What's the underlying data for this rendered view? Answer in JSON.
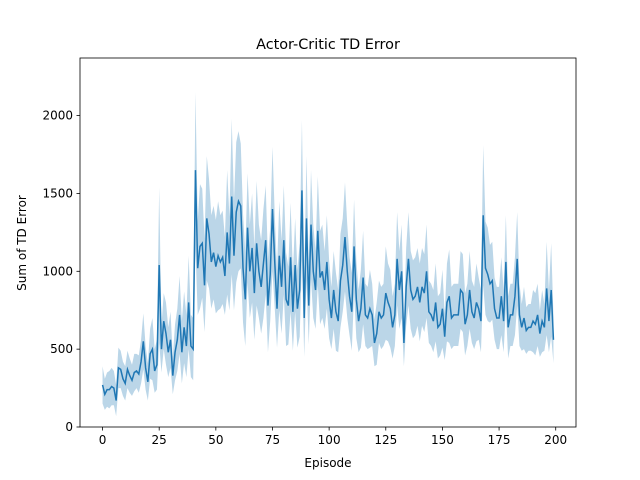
{
  "chart_data": {
    "type": "line",
    "title": "Actor-Critic TD Error",
    "x_label": "Episode",
    "y_label": "Sum of TD Error",
    "x": [
      0,
      1,
      2,
      3,
      4,
      5,
      6,
      7,
      8,
      9,
      10,
      11,
      12,
      13,
      14,
      15,
      16,
      17,
      18,
      19,
      20,
      21,
      22,
      23,
      24,
      25,
      26,
      27,
      28,
      29,
      30,
      31,
      32,
      33,
      34,
      35,
      36,
      37,
      38,
      39,
      40,
      41,
      42,
      43,
      44,
      45,
      46,
      47,
      48,
      49,
      50,
      51,
      52,
      53,
      54,
      55,
      56,
      57,
      58,
      59,
      60,
      61,
      62,
      63,
      64,
      65,
      66,
      67,
      68,
      69,
      70,
      71,
      72,
      73,
      74,
      75,
      76,
      77,
      78,
      79,
      80,
      81,
      82,
      83,
      84,
      85,
      86,
      87,
      88,
      89,
      90,
      91,
      92,
      93,
      94,
      95,
      96,
      97,
      98,
      99,
      100,
      101,
      102,
      103,
      104,
      105,
      106,
      107,
      108,
      109,
      110,
      111,
      112,
      113,
      114,
      115,
      116,
      117,
      118,
      119,
      120,
      121,
      122,
      123,
      124,
      125,
      126,
      127,
      128,
      129,
      130,
      131,
      132,
      133,
      134,
      135,
      136,
      137,
      138,
      139,
      140,
      141,
      142,
      143,
      144,
      145,
      146,
      147,
      148,
      149,
      150,
      151,
      152,
      153,
      154,
      155,
      156,
      157,
      158,
      159,
      160,
      161,
      162,
      163,
      164,
      165,
      166,
      167,
      168,
      169,
      170,
      171,
      172,
      173,
      174,
      175,
      176,
      177,
      178,
      179,
      180,
      181,
      182,
      183,
      184,
      185,
      186,
      187,
      188,
      189,
      190,
      191,
      192,
      193,
      194,
      195,
      196,
      197,
      198,
      199
    ],
    "series": [
      {
        "color": "#1f77b4",
        "values": [
          270,
          210,
          240,
          240,
          260,
          250,
          170,
          380,
          370,
          310,
          280,
          370,
          330,
          300,
          350,
          360,
          340,
          420,
          550,
          380,
          290,
          470,
          500,
          360,
          400,
          1040,
          500,
          680,
          600,
          480,
          560,
          330,
          480,
          560,
          720,
          480,
          640,
          520,
          800,
          520,
          500,
          1650,
          1020,
          1160,
          1180,
          910,
          1340,
          1240,
          1060,
          1120,
          1030,
          1100,
          1060,
          1090,
          970,
          1250,
          1050,
          1480,
          1100,
          1380,
          1450,
          1420,
          1020,
          820,
          1280,
          1000,
          1150,
          860,
          1180,
          1000,
          900,
          1050,
          1200,
          780,
          980,
          1400,
          1060,
          760,
          1100,
          900,
          1200,
          820,
          780,
          1090,
          740,
          1040,
          760,
          880,
          1520,
          700,
          1340,
          780,
          1300,
          1000,
          880,
          1260,
          960,
          1000,
          880,
          1060,
          820,
          700,
          880,
          740,
          680,
          940,
          1040,
          1220,
          1000,
          840,
          740,
          1160,
          820,
          680,
          760,
          960,
          720,
          700,
          760,
          720,
          540,
          600,
          740,
          700,
          720,
          860,
          800,
          760,
          640,
          720,
          1080,
          880,
          1000,
          540,
          900,
          1080,
          880,
          820,
          840,
          900,
          800,
          900,
          860,
          1000,
          740,
          720,
          680,
          800,
          640,
          660,
          760,
          580,
          800,
          840,
          700,
          720,
          720,
          720,
          880,
          860,
          660,
          720,
          880,
          740,
          700,
          800,
          760,
          680,
          1360,
          1020,
          980,
          920,
          940,
          760,
          700,
          700,
          840,
          680,
          1060,
          640,
          720,
          720,
          840,
          1080,
          720,
          640,
          700,
          620,
          640,
          640,
          680,
          660,
          720,
          600,
          680,
          640,
          890,
          680,
          880,
          560
        ],
        "errors": [
          120,
          100,
          110,
          120,
          120,
          110,
          100,
          130,
          120,
          110,
          110,
          120,
          110,
          100,
          120,
          110,
          120,
          140,
          180,
          140,
          120,
          160,
          200,
          140,
          160,
          500,
          150,
          180,
          200,
          160,
          180,
          120,
          180,
          200,
          250,
          200,
          230,
          200,
          300,
          200,
          200,
          500,
          300,
          400,
          350,
          300,
          400,
          350,
          300,
          300,
          300,
          350,
          300,
          300,
          250,
          400,
          300,
          500,
          350,
          450,
          450,
          400,
          350,
          300,
          350,
          300,
          350,
          300,
          400,
          300,
          300,
          350,
          350,
          300,
          300,
          400,
          300,
          250,
          350,
          300,
          350,
          300,
          250,
          350,
          250,
          300,
          250,
          300,
          450,
          250,
          400,
          250,
          350,
          300,
          250,
          350,
          300,
          300,
          250,
          300,
          250,
          200,
          250,
          250,
          200,
          300,
          300,
          350,
          300,
          250,
          250,
          300,
          250,
          200,
          250,
          300,
          200,
          200,
          250,
          200,
          150,
          200,
          200,
          200,
          200,
          300,
          250,
          250,
          200,
          200,
          300,
          250,
          300,
          150,
          250,
          300,
          250,
          250,
          250,
          250,
          250,
          250,
          250,
          300,
          200,
          200,
          200,
          250,
          200,
          200,
          250,
          150,
          250,
          300,
          200,
          200,
          200,
          200,
          250,
          250,
          200,
          200,
          250,
          200,
          200,
          250,
          200,
          200,
          450,
          300,
          300,
          250,
          250,
          200,
          200,
          200,
          250,
          200,
          300,
          200,
          200,
          200,
          250,
          300,
          200,
          150,
          200,
          150,
          150,
          150,
          200,
          200,
          200,
          150,
          200,
          150,
          300,
          200,
          300,
          150
        ]
      }
    ],
    "xlim": [
      -9.95,
      208.95
    ],
    "ylim": [
      0,
      2370
    ],
    "xticks": [
      0,
      25,
      50,
      75,
      100,
      125,
      150,
      175,
      200
    ],
    "yticks": [
      0,
      500,
      1000,
      1500,
      2000
    ]
  }
}
